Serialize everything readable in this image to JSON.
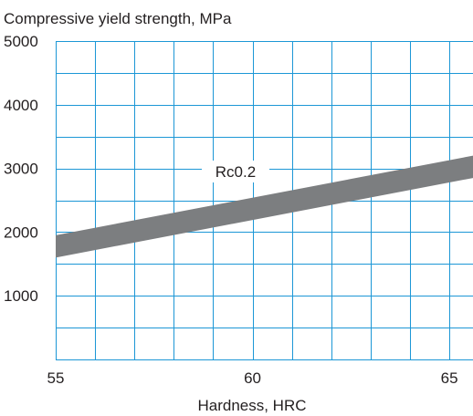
{
  "chart_data": {
    "type": "area",
    "title": "Compressive yield strength, MPa",
    "xlabel": "Hardness, HRC",
    "ylabel": "",
    "xlim": [
      55,
      65.6
    ],
    "ylim": [
      0,
      5000
    ],
    "x_ticks": [
      "55",
      "60",
      "65"
    ],
    "y_ticks": [
      "5000",
      "4000",
      "3000",
      "2000",
      "1000"
    ],
    "grid": true,
    "band": {
      "label": "Rc0.2",
      "x": [
        55,
        65.6
      ],
      "upper": [
        1950,
        3200
      ],
      "lower": [
        1600,
        2850
      ]
    },
    "colors": {
      "grid": "#1c97d6",
      "band": "#7c7e80",
      "text": "#231f20"
    }
  }
}
